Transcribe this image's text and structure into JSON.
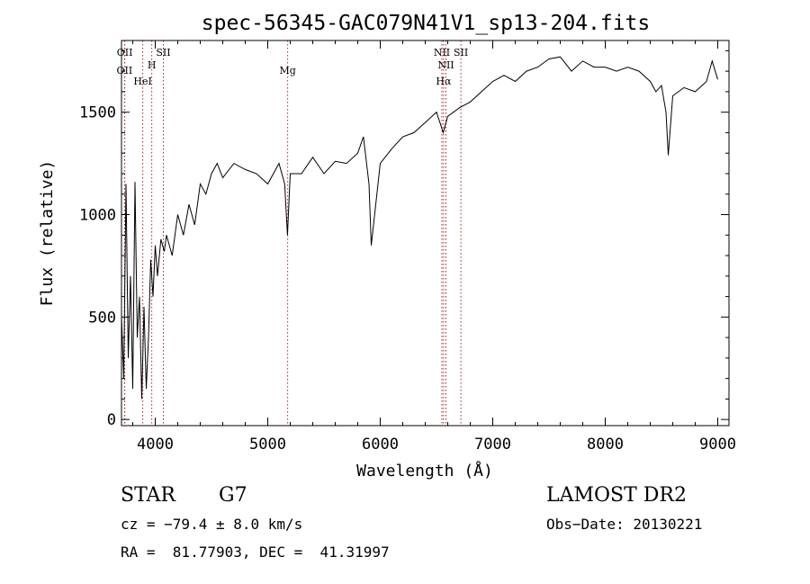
{
  "chart_data": {
    "type": "line",
    "title": "spec-56345-GAC079N41V1_sp13-204.fits",
    "xlabel": "Wavelength (Å)",
    "ylabel": "Flux (relative)",
    "xlim": [
      3700,
      9100
    ],
    "ylim": [
      -30,
      1850
    ],
    "x_ticks": [
      4000,
      5000,
      6000,
      7000,
      8000,
      9000
    ],
    "y_ticks": [
      0,
      500,
      1000,
      1500
    ],
    "grid": false,
    "series": [
      {
        "x": [
          3700,
          3720,
          3740,
          3760,
          3780,
          3800,
          3820,
          3840,
          3860,
          3880,
          3900,
          3920,
          3940,
          3960,
          3980,
          4000,
          4020,
          4050,
          4080,
          4100,
          4150,
          4200,
          4250,
          4300,
          4350,
          4400,
          4450,
          4500,
          4550,
          4600,
          4700,
          4800,
          4900,
          5000,
          5100,
          5150,
          5175,
          5200,
          5300,
          5400,
          5500,
          5600,
          5700,
          5800,
          5850,
          5900,
          5920,
          6000,
          6100,
          6200,
          6300,
          6400,
          6500,
          6560,
          6600,
          6650,
          6700,
          6800,
          6900,
          7000,
          7100,
          7200,
          7300,
          7400,
          7500,
          7600,
          7700,
          7800,
          7900,
          8000,
          8100,
          8200,
          8300,
          8400,
          8450,
          8500,
          8540,
          8560,
          8600,
          8700,
          8800,
          8900,
          8950,
          9000
        ],
        "values": [
          500,
          200,
          1150,
          300,
          700,
          150,
          1160,
          400,
          600,
          100,
          550,
          150,
          400,
          780,
          600,
          850,
          700,
          880,
          820,
          900,
          800,
          1000,
          900,
          1050,
          950,
          1150,
          1100,
          1200,
          1250,
          1180,
          1250,
          1220,
          1200,
          1150,
          1250,
          1150,
          900,
          1200,
          1200,
          1280,
          1200,
          1260,
          1250,
          1300,
          1380,
          1150,
          850,
          1250,
          1320,
          1380,
          1400,
          1450,
          1500,
          1400,
          1480,
          1500,
          1520,
          1550,
          1600,
          1650,
          1680,
          1650,
          1700,
          1720,
          1760,
          1770,
          1700,
          1750,
          1720,
          1720,
          1700,
          1720,
          1700,
          1650,
          1600,
          1630,
          1500,
          1290,
          1580,
          1620,
          1600,
          1650,
          1750,
          1660
        ]
      }
    ],
    "lines": [
      {
        "label": "OII",
        "x": 3727
      },
      {
        "label": "OII",
        "x": 3729
      },
      {
        "label": "HeI",
        "x": 3889
      },
      {
        "label": "H",
        "x": 3969
      },
      {
        "label": "SII",
        "x": 4072
      },
      {
        "label": "Mg",
        "x": 5177
      },
      {
        "label": "NII",
        "x": 6548
      },
      {
        "label": "Hα",
        "x": 6563
      },
      {
        "label": "NII",
        "x": 6584
      },
      {
        "label": "SII",
        "x": 6717
      }
    ]
  },
  "info": {
    "object_class": "STAR",
    "subclass": "G7",
    "survey": "LAMOST DR2",
    "cz": "cz = −79.4 ± 8.0 km/s",
    "obs_date": "Obs−Date: 20130221",
    "coords": "RA =  81.77903, DEC =  41.31997"
  }
}
